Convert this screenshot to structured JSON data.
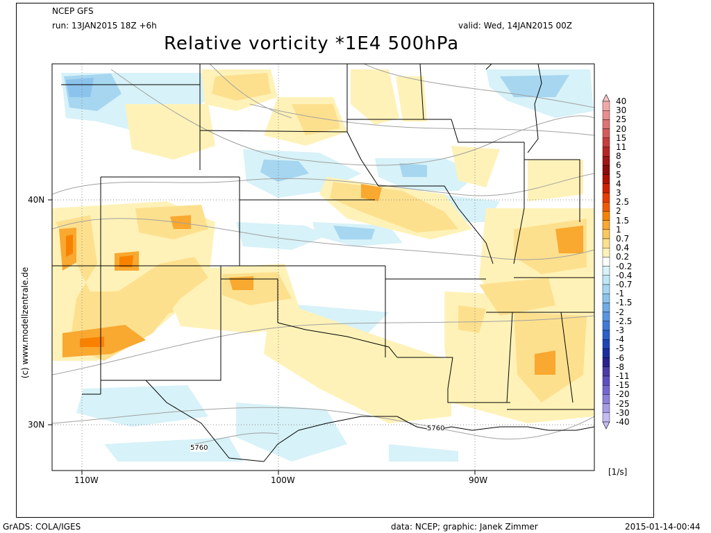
{
  "header": {
    "model": "NCEP GFS",
    "run": "run: 13JAN2015 18Z +6h",
    "valid": "valid: Wed, 14JAN2015 00Z",
    "title": "Relative vorticity *1E4 500hPa"
  },
  "credit_side": "(c) www.modellzentrale.de",
  "footer": {
    "left": "GrADS: COLA/IGES",
    "center": "data: NCEP; graphic: Janek Zimmer",
    "right": "2015-01-14-00:44"
  },
  "axes": {
    "lon_labels": [
      "110W",
      "100W",
      "90W"
    ],
    "lat_labels": [
      "40N",
      "30N"
    ]
  },
  "contours": {
    "labels": [
      "5760",
      "5760"
    ]
  },
  "legend": {
    "unit": "[1/s]",
    "levels": [
      "40",
      "30",
      "25",
      "20",
      "15",
      "11",
      "8",
      "6",
      "5",
      "4",
      "3",
      "2.5",
      "2",
      "1.5",
      "1",
      "0.7",
      "0.4",
      "0.2",
      "-0.2",
      "-0.4",
      "-0.7",
      "-1",
      "-1.5",
      "-2",
      "-2.5",
      "-3",
      "-4",
      "-5",
      "-6",
      "-8",
      "-11",
      "-15",
      "-20",
      "-25",
      "-30",
      "-40"
    ],
    "colors": [
      "#f7c6c6",
      "#f0a8a8",
      "#e98d8d",
      "#e07272",
      "#d65a5a",
      "#c83c3c",
      "#b82525",
      "#a01515",
      "#8c0c0c",
      "#b01000",
      "#d02000",
      "#e83a00",
      "#f05a00",
      "#f88200",
      "#f9a830",
      "#fbc860",
      "#fde08e",
      "#fff2b8",
      "#ffffff",
      "#d7f2f8",
      "#bfe6f4",
      "#a6d6f0",
      "#8cc3ec",
      "#6fabe6",
      "#5a95e0",
      "#3f7ad6",
      "#2a5fcc",
      "#1e45b8",
      "#1a2ea0",
      "#2a2090",
      "#4a3aa8",
      "#5c50c0",
      "#7466d0",
      "#8c80dc",
      "#a89ce6",
      "#c4bcf0"
    ]
  }
}
